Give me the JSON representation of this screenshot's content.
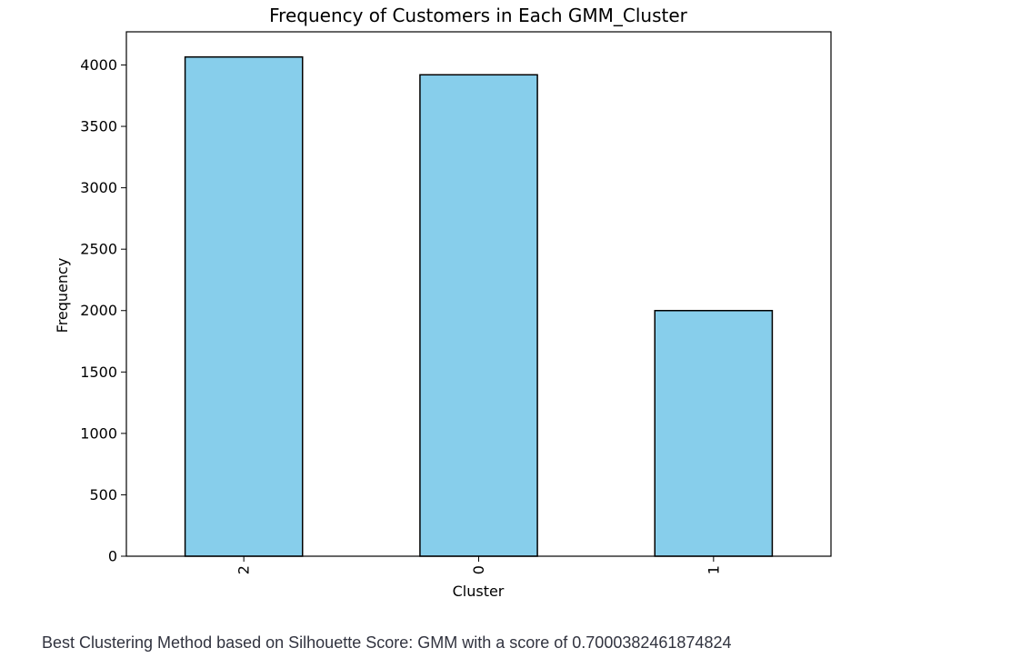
{
  "chart_data": {
    "type": "bar",
    "title": "Frequency of Customers in Each GMM_Cluster",
    "xlabel": "Cluster",
    "ylabel": "Frequency",
    "categories": [
      "2",
      "0",
      "1"
    ],
    "values": [
      4065,
      3920,
      2000
    ],
    "ylim": [
      0,
      4270
    ],
    "yticks": [
      0,
      500,
      1000,
      1500,
      2000,
      2500,
      3000,
      3500,
      4000
    ],
    "tick_label_rotation_x": "vertical",
    "grid": false,
    "legend": "none",
    "bar_color": "#87ceeb",
    "edge_color": "#000000"
  },
  "caption": {
    "text": "Best Clustering Method based on Silhouette Score: GMM with a score of 0.7000382461874824"
  }
}
